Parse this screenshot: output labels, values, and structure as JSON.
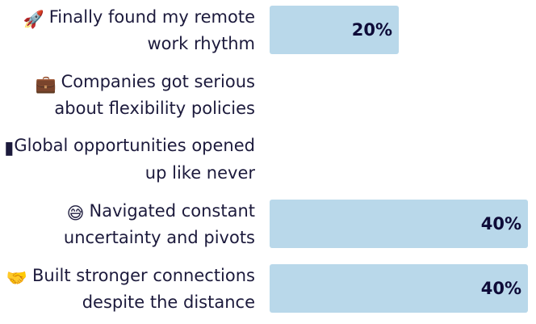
{
  "chart_data": {
    "type": "bar",
    "orientation": "horizontal",
    "categories": [
      "Finally found my remote work rhythm",
      "Companies got serious about flexibility policies",
      "Global opportunities opened up like never",
      "Navigated constant uncertainty and pivots",
      "Built stronger connections despite the distance"
    ],
    "label_lines": [
      [
        "Finally found my remote",
        "work rhythm"
      ],
      [
        "Companies got serious",
        "about flexibility policies"
      ],
      [
        "Global opportunities opened",
        "up like never"
      ],
      [
        "Navigated constant",
        "uncertainty and pivots"
      ],
      [
        "Built stronger connections",
        "despite the distance"
      ]
    ],
    "icons": [
      "rocket-icon",
      "briefcase-icon",
      "broken-glyph-icon",
      "sweat-smile-icon",
      "handshake-icon"
    ],
    "values": [
      20,
      0,
      0,
      40,
      40
    ],
    "value_labels": [
      "20%",
      "",
      "",
      "40%",
      "40%"
    ],
    "xlim": [
      0,
      40
    ],
    "bar_color": "#b9d8ea",
    "label_color": "#0e0b38",
    "grid": false,
    "legend": "none"
  }
}
